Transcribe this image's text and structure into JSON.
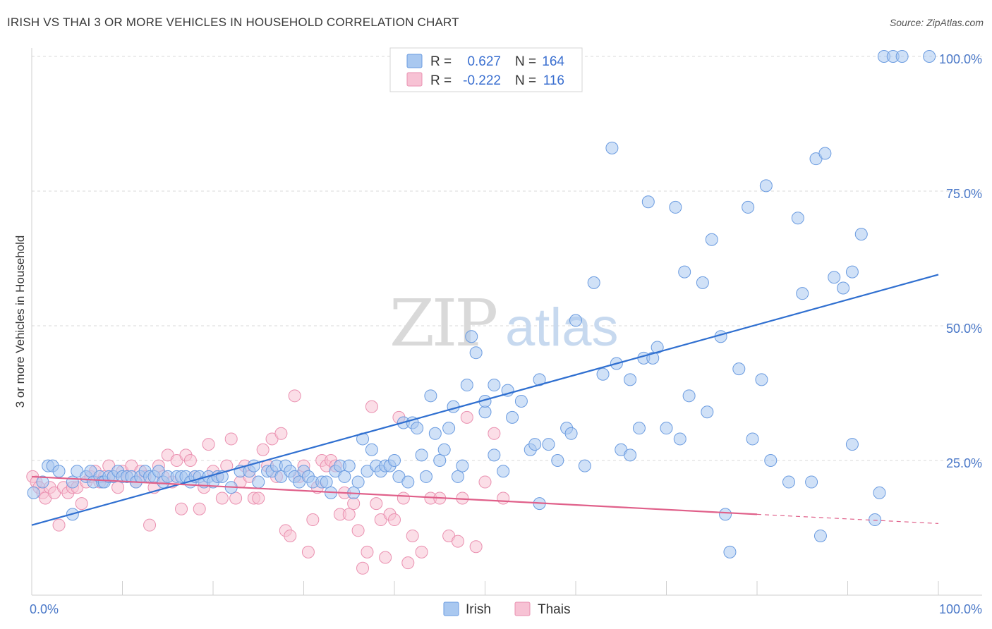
{
  "title": "IRISH VS THAI 3 OR MORE VEHICLES IN HOUSEHOLD CORRELATION CHART",
  "source": "Source: ZipAtlas.com",
  "watermark": {
    "zip": "ZIP",
    "atlas": "atlas"
  },
  "legend_top": {
    "r_label": "R =",
    "n_label": "N =",
    "rows": [
      {
        "series": "Irish",
        "r": "0.627",
        "n": "164",
        "color": "#6fa1e6"
      },
      {
        "series": "Thais",
        "r": "-0.222",
        "n": "116",
        "color": "#f2a0bd"
      }
    ]
  },
  "legend_bottom": [
    {
      "label": "Irish",
      "color": "#6fa1e6"
    },
    {
      "label": "Thais",
      "color": "#f2a0bd"
    }
  ],
  "colors": {
    "irish_fill": "#a9c8f0",
    "irish_stroke": "#6a9be0",
    "irish_line": "#2f6fd0",
    "thai_fill": "#f7c2d4",
    "thai_stroke": "#ea90b0",
    "thai_line": "#e0608a",
    "grid": "#d8d8d8",
    "tick_text": "#4a78c8"
  },
  "chart_data": {
    "type": "scatter",
    "title": "IRISH VS THAI 3 OR MORE VEHICLES IN HOUSEHOLD CORRELATION CHART",
    "xlabel": "",
    "ylabel": "3 or more Vehicles in Household",
    "xlim": [
      0,
      100
    ],
    "ylim": [
      0,
      100
    ],
    "x_tick_labels": [
      "0.0%",
      "100.0%"
    ],
    "y_tick_labels": [
      "25.0%",
      "50.0%",
      "75.0%",
      "100.0%"
    ],
    "y_ticks": [
      25,
      50,
      75,
      100
    ],
    "grid": true,
    "legend_position": "top-center",
    "series": [
      {
        "name": "Irish",
        "points": [
          [
            0.2,
            19
          ],
          [
            1.2,
            21
          ],
          [
            1.8,
            24
          ],
          [
            2.3,
            24
          ],
          [
            3,
            23
          ],
          [
            4.5,
            21
          ],
          [
            4.5,
            15
          ],
          [
            5,
            23
          ],
          [
            6,
            22
          ],
          [
            6.5,
            23
          ],
          [
            6.8,
            21
          ],
          [
            7.5,
            22
          ],
          [
            7.8,
            21
          ],
          [
            8,
            21
          ],
          [
            8.5,
            22
          ],
          [
            9,
            22
          ],
          [
            9.5,
            23
          ],
          [
            10,
            22
          ],
          [
            10.5,
            22
          ],
          [
            11,
            22
          ],
          [
            11.5,
            21
          ],
          [
            12,
            22
          ],
          [
            12.5,
            23
          ],
          [
            13,
            22
          ],
          [
            13.5,
            22
          ],
          [
            14,
            23
          ],
          [
            14.5,
            21
          ],
          [
            15,
            22
          ],
          [
            16,
            22
          ],
          [
            16.5,
            22
          ],
          [
            17,
            22
          ],
          [
            17.5,
            21
          ],
          [
            18,
            22
          ],
          [
            18.5,
            22
          ],
          [
            19,
            21
          ],
          [
            19.5,
            22
          ],
          [
            20,
            21
          ],
          [
            20.5,
            22
          ],
          [
            21,
            22
          ],
          [
            22,
            20
          ],
          [
            23,
            23
          ],
          [
            24,
            23
          ],
          [
            24.5,
            24
          ],
          [
            25,
            21
          ],
          [
            26,
            23
          ],
          [
            26.5,
            23
          ],
          [
            27,
            24
          ],
          [
            27.5,
            22
          ],
          [
            28,
            24
          ],
          [
            28.5,
            23
          ],
          [
            29,
            22
          ],
          [
            29.5,
            21
          ],
          [
            30,
            23
          ],
          [
            30.5,
            22
          ],
          [
            31,
            21
          ],
          [
            32,
            21
          ],
          [
            32.5,
            21
          ],
          [
            33,
            19
          ],
          [
            33.5,
            23
          ],
          [
            34,
            24
          ],
          [
            34.5,
            22
          ],
          [
            35,
            24
          ],
          [
            35.5,
            19
          ],
          [
            36,
            21
          ],
          [
            36.5,
            29
          ],
          [
            37,
            23
          ],
          [
            37.5,
            27
          ],
          [
            38,
            24
          ],
          [
            38.5,
            23
          ],
          [
            39,
            24
          ],
          [
            39.5,
            24
          ],
          [
            40,
            25
          ],
          [
            40.5,
            22
          ],
          [
            41,
            32
          ],
          [
            41.5,
            21
          ],
          [
            42,
            32
          ],
          [
            42.5,
            31
          ],
          [
            43,
            26
          ],
          [
            43.5,
            22
          ],
          [
            44,
            37
          ],
          [
            44.5,
            30
          ],
          [
            45,
            25
          ],
          [
            45.5,
            27
          ],
          [
            46,
            31
          ],
          [
            46.5,
            35
          ],
          [
            47,
            22
          ],
          [
            47.5,
            24
          ],
          [
            48,
            39
          ],
          [
            48.5,
            48
          ],
          [
            49,
            45
          ],
          [
            50,
            34
          ],
          [
            50,
            36
          ],
          [
            51,
            26
          ],
          [
            51,
            39
          ],
          [
            52,
            23
          ],
          [
            52.5,
            38
          ],
          [
            53,
            33
          ],
          [
            54,
            36
          ],
          [
            55,
            27
          ],
          [
            55.5,
            28
          ],
          [
            56,
            17
          ],
          [
            56,
            40
          ],
          [
            57,
            28
          ],
          [
            58,
            25
          ],
          [
            59,
            31
          ],
          [
            59.5,
            30
          ],
          [
            60,
            51
          ],
          [
            61,
            24
          ],
          [
            62,
            58
          ],
          [
            63,
            41
          ],
          [
            64,
            83
          ],
          [
            64.5,
            43
          ],
          [
            65,
            27
          ],
          [
            66,
            26
          ],
          [
            66,
            40
          ],
          [
            67,
            31
          ],
          [
            67.5,
            44
          ],
          [
            68,
            73
          ],
          [
            68.5,
            44
          ],
          [
            69,
            46
          ],
          [
            70,
            31
          ],
          [
            71,
            72
          ],
          [
            71.5,
            29
          ],
          [
            72,
            60
          ],
          [
            72.5,
            37
          ],
          [
            74,
            58
          ],
          [
            74.5,
            34
          ],
          [
            75,
            66
          ],
          [
            76,
            48
          ],
          [
            76.5,
            15
          ],
          [
            77,
            8
          ],
          [
            78,
            42
          ],
          [
            79,
            72
          ],
          [
            79.5,
            29
          ],
          [
            80.5,
            40
          ],
          [
            81,
            76
          ],
          [
            81.5,
            25
          ],
          [
            83.5,
            21
          ],
          [
            84.5,
            70
          ],
          [
            85,
            56
          ],
          [
            86,
            21
          ],
          [
            86.5,
            81
          ],
          [
            87,
            11
          ],
          [
            87.5,
            82
          ],
          [
            88.5,
            59
          ],
          [
            89.5,
            57
          ],
          [
            90.5,
            60
          ],
          [
            90.5,
            28
          ],
          [
            93,
            14
          ],
          [
            94,
            100
          ],
          [
            95,
            100
          ],
          [
            96,
            100
          ],
          [
            99,
            100
          ],
          [
            91.5,
            67
          ],
          [
            93.5,
            19
          ]
        ]
      },
      {
        "name": "Thais",
        "points": [
          [
            0.1,
            22
          ],
          [
            0.5,
            21
          ],
          [
            0.8,
            20
          ],
          [
            1.2,
            19
          ],
          [
            1.5,
            18
          ],
          [
            2,
            20
          ],
          [
            2.5,
            19
          ],
          [
            3,
            13
          ],
          [
            3.5,
            20
          ],
          [
            4,
            19
          ],
          [
            4.5,
            20
          ],
          [
            5,
            20
          ],
          [
            5.5,
            17
          ],
          [
            6,
            21
          ],
          [
            6.5,
            22
          ],
          [
            7,
            23
          ],
          [
            7.5,
            21
          ],
          [
            8,
            22
          ],
          [
            8.5,
            24
          ],
          [
            9,
            22
          ],
          [
            9.5,
            20
          ],
          [
            10,
            23
          ],
          [
            10.5,
            22
          ],
          [
            11,
            24
          ],
          [
            11.5,
            21
          ],
          [
            12,
            23
          ],
          [
            12.5,
            22
          ],
          [
            13,
            13
          ],
          [
            13.5,
            20
          ],
          [
            14,
            24
          ],
          [
            14.5,
            22
          ],
          [
            15,
            26
          ],
          [
            15.5,
            21
          ],
          [
            16,
            25
          ],
          [
            16.5,
            16
          ],
          [
            17,
            26
          ],
          [
            17.5,
            25
          ],
          [
            18,
            22
          ],
          [
            18.5,
            16
          ],
          [
            19,
            20
          ],
          [
            19.5,
            28
          ],
          [
            20,
            23
          ],
          [
            20.5,
            22
          ],
          [
            21,
            18
          ],
          [
            21.5,
            24
          ],
          [
            22,
            29
          ],
          [
            22.5,
            18
          ],
          [
            23,
            21
          ],
          [
            23.5,
            24
          ],
          [
            24,
            22
          ],
          [
            24.5,
            18
          ],
          [
            25,
            18
          ],
          [
            25.5,
            27
          ],
          [
            26,
            24
          ],
          [
            26.5,
            29
          ],
          [
            27,
            22
          ],
          [
            27.5,
            30
          ],
          [
            28,
            12
          ],
          [
            28.5,
            11
          ],
          [
            29,
            37
          ],
          [
            29.5,
            22
          ],
          [
            30,
            24
          ],
          [
            30.5,
            8
          ],
          [
            31,
            14
          ],
          [
            31.5,
            20
          ],
          [
            32,
            25
          ],
          [
            32.5,
            24
          ],
          [
            33,
            25
          ],
          [
            33.5,
            24
          ],
          [
            34,
            15
          ],
          [
            34.5,
            19
          ],
          [
            35,
            15
          ],
          [
            35.5,
            17
          ],
          [
            36,
            12
          ],
          [
            36.5,
            5
          ],
          [
            37,
            8
          ],
          [
            37.5,
            35
          ],
          [
            38,
            17
          ],
          [
            38.5,
            14
          ],
          [
            39,
            7
          ],
          [
            39.5,
            15
          ],
          [
            40,
            14
          ],
          [
            40.5,
            33
          ],
          [
            41,
            18
          ],
          [
            41.5,
            6
          ],
          [
            42,
            11
          ],
          [
            43,
            8
          ],
          [
            44,
            18
          ],
          [
            45,
            18
          ],
          [
            46,
            11
          ],
          [
            47,
            10
          ],
          [
            47.5,
            18
          ],
          [
            48,
            33
          ],
          [
            49,
            9
          ],
          [
            50,
            21
          ],
          [
            51,
            30
          ],
          [
            52,
            18
          ]
        ]
      }
    ],
    "trend_lines": [
      {
        "series": "Irish",
        "x": [
          0,
          100
        ],
        "y": [
          13,
          59.5
        ]
      },
      {
        "series": "Thais",
        "x": [
          0,
          80
        ],
        "y": [
          22,
          15
        ],
        "dashed_extension": {
          "x": [
            80,
            100
          ],
          "y": [
            15,
            13.3
          ]
        }
      }
    ]
  }
}
